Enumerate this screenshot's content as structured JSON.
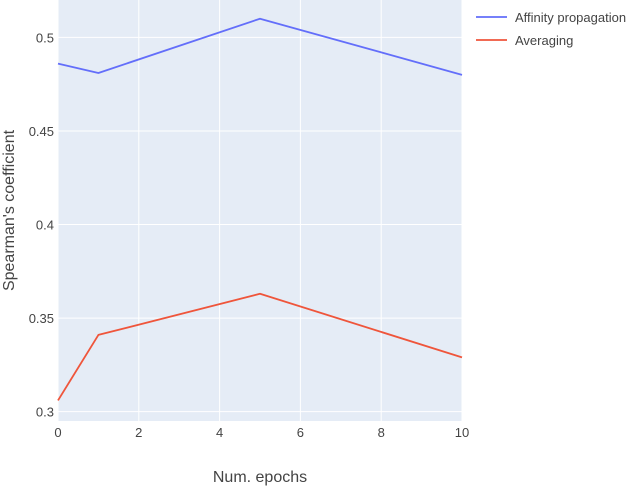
{
  "chart_data": {
    "type": "line",
    "title": "",
    "xlabel": "Num. epochs",
    "ylabel": "Spearman's coefficient",
    "xlim": [
      0,
      10
    ],
    "ylim": [
      0.295,
      0.52
    ],
    "xticks": [
      0,
      2,
      4,
      6,
      8,
      10
    ],
    "yticks": [
      0.3,
      0.35,
      0.4,
      0.45,
      0.5
    ],
    "ytick_labels": [
      "0.3",
      "0.35",
      "0.4",
      "0.45",
      "0.5"
    ],
    "grid": true,
    "legend_position": "top-right",
    "x": [
      0,
      1,
      5,
      10
    ],
    "series": [
      {
        "name": "Affinity propagation",
        "color": "#636efa",
        "values": [
          0.486,
          0.481,
          0.51,
          0.48
        ]
      },
      {
        "name": "Averaging",
        "color": "#ef553b",
        "values": [
          0.306,
          0.341,
          0.363,
          0.329
        ]
      }
    ]
  },
  "colors": {
    "plot_background": "#e5ecf6",
    "grid": "#ffffff",
    "text": "#444444"
  }
}
